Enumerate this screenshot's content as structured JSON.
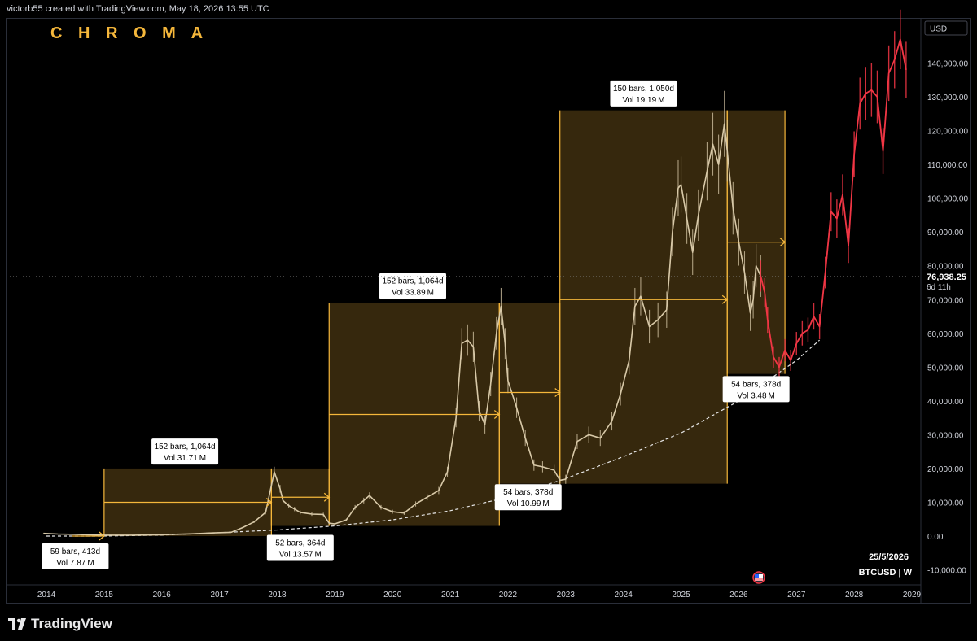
{
  "header": {
    "attribution": "victorb55 created with TradingView.com, May 18, 2026 13:55 UTC"
  },
  "brand": {
    "watermark": "C H R O M A",
    "footer": "TradingView"
  },
  "price_axis": {
    "currency": "USD",
    "current_price": "76,938.25",
    "countdown": "6d 11h",
    "date_label": "25/5/2026",
    "symbol_label": "BTCUSD | W"
  },
  "colors": {
    "background": "#000000",
    "accent": "#f5b73b",
    "candles": "#d8c9a8",
    "projection": "#f23645",
    "label_bg": "#ffffff",
    "label_text": "#000000"
  },
  "chart_data": {
    "type": "line",
    "symbol": "BTCUSD",
    "interval": "W",
    "ylim": [
      -10000,
      150000
    ],
    "y_ticks": [
      -10000,
      0,
      10000,
      20000,
      30000,
      40000,
      50000,
      60000,
      70000,
      80000,
      90000,
      100000,
      110000,
      120000,
      130000,
      140000
    ],
    "y_tick_labels": [
      "-10,000.00",
      "0.00",
      "10,000.00",
      "20,000.00",
      "30,000.00",
      "40,000.00",
      "50,000.00",
      "60,000.00",
      "70,000.00",
      "80,000.00",
      "90,000.00",
      "100,000.00",
      "110,000.00",
      "120,000.00",
      "130,000.00",
      "140,000.00"
    ],
    "x_ticks": [
      2014,
      2015,
      2016,
      2017,
      2018,
      2019,
      2020,
      2021,
      2022,
      2023,
      2024,
      2025,
      2026,
      2027,
      2028,
      2029
    ],
    "x_tick_labels": [
      "2014",
      "2015",
      "2016",
      "2017",
      "2018",
      "2019",
      "2020",
      "2021",
      "2022",
      "2023",
      "2024",
      "2025",
      "2026",
      "2027",
      "2028",
      "2029"
    ],
    "series": [
      {
        "role": "price",
        "x": [
          2013.95,
          2014.2,
          2014.5,
          2014.8,
          2015.0,
          2015.5,
          2016.0,
          2016.5,
          2016.9,
          2017.2,
          2017.4,
          2017.6,
          2017.8,
          2017.95,
          2018.05,
          2018.1,
          2018.2,
          2018.3,
          2018.4,
          2018.6,
          2018.8,
          2018.9,
          2019.0,
          2019.2,
          2019.35,
          2019.5,
          2019.6,
          2019.8,
          2020.0,
          2020.2,
          2020.4,
          2020.6,
          2020.8,
          2020.95,
          2021.1,
          2021.2,
          2021.3,
          2021.4,
          2021.5,
          2021.6,
          2021.7,
          2021.8,
          2021.88,
          2021.95,
          2022.0,
          2022.15,
          2022.3,
          2022.45,
          2022.6,
          2022.8,
          2022.9,
          2023.0,
          2023.2,
          2023.4,
          2023.6,
          2023.8,
          2023.95,
          2024.1,
          2024.2,
          2024.3,
          2024.45,
          2024.6,
          2024.75,
          2024.85,
          2024.95,
          2025.0,
          2025.1,
          2025.2,
          2025.3,
          2025.45,
          2025.55,
          2025.65,
          2025.75,
          2025.8,
          2025.9,
          2026.0,
          2026.1,
          2026.2,
          2026.25,
          2026.3,
          2026.38
        ],
        "y": [
          800,
          600,
          500,
          350,
          250,
          250,
          400,
          650,
          950,
          1100,
          2500,
          4200,
          7000,
          19000,
          14000,
          10500,
          9000,
          8000,
          7000,
          6500,
          6400,
          3800,
          3600,
          4800,
          8500,
          10500,
          12000,
          8500,
          7200,
          6800,
          9500,
          11500,
          13500,
          19000,
          35000,
          57000,
          58000,
          56000,
          37000,
          33000,
          45000,
          60000,
          68000,
          57000,
          46000,
          38000,
          29000,
          21000,
          20500,
          19500,
          16500,
          16800,
          28000,
          30000,
          29000,
          34000,
          42000,
          52000,
          68000,
          71000,
          62000,
          64000,
          67000,
          90000,
          103000,
          104000,
          94000,
          84000,
          95000,
          108000,
          116000,
          110000,
          122000,
          114000,
          97000,
          87000,
          78000,
          66000,
          70000,
          80000,
          76938
        ]
      },
      {
        "role": "projection",
        "x": [
          2026.38,
          2026.45,
          2026.5,
          2026.6,
          2026.7,
          2026.8,
          2026.9,
          2027.0,
          2027.1,
          2027.2,
          2027.3,
          2027.4,
          2027.5,
          2027.6,
          2027.7,
          2027.8,
          2027.9,
          2028.0,
          2028.1,
          2028.2,
          2028.3,
          2028.4,
          2028.5,
          2028.6,
          2028.7,
          2028.8,
          2028.9
        ],
        "y": [
          76938,
          72000,
          64000,
          53000,
          50000,
          55000,
          52000,
          57000,
          60000,
          61000,
          65000,
          62000,
          78000,
          96000,
          94000,
          101000,
          86000,
          113000,
          128000,
          131000,
          132000,
          130000,
          114000,
          137000,
          141000,
          147000,
          138000
        ]
      },
      {
        "role": "trendline",
        "x": [
          2014.0,
          2015.0,
          2016.0,
          2017.0,
          2018.0,
          2019.0,
          2020.0,
          2021.0,
          2022.0,
          2023.0,
          2024.0,
          2025.0,
          2026.0,
          2026.5,
          2027.0,
          2027.4
        ],
        "y": [
          0,
          0,
          300,
          1000,
          1800,
          3000,
          4800,
          7500,
          11500,
          17000,
          23500,
          30500,
          40000,
          46000,
          52000,
          58000
        ]
      }
    ],
    "boxes": [
      {
        "x0": 2015.0,
        "x1": 2017.9,
        "y0": 0,
        "y1": 20000,
        "mid_y": 10000
      },
      {
        "x0": 2018.9,
        "x1": 2021.85,
        "y0": 3000,
        "y1": 69000,
        "mid_y": 36000
      },
      {
        "x0": 2022.9,
        "x1": 2025.8,
        "y0": 15500,
        "y1": 126000,
        "mid_y": 70000
      },
      {
        "x0": 2025.8,
        "x1": 2026.8,
        "y0": 48000,
        "y1": 126000,
        "mid_y": 87000
      },
      {
        "x0": 2017.9,
        "x1": 2018.9,
        "y0": 3000,
        "y1": 20000,
        "mid_y": 11500
      },
      {
        "x0": 2021.85,
        "x1": 2022.9,
        "y0": 15500,
        "y1": 69000,
        "mid_y": 42500
      }
    ],
    "arrows": [
      {
        "x0": 2014.45,
        "x1": 2015.0,
        "y": 0
      },
      {
        "x0": 2015.0,
        "x1": 2017.9,
        "y": 10000
      },
      {
        "x0": 2017.9,
        "x1": 2018.9,
        "y": 11500
      },
      {
        "x0": 2018.9,
        "x1": 2021.85,
        "y": 36000
      },
      {
        "x0": 2021.85,
        "x1": 2022.9,
        "y": 42500
      },
      {
        "x0": 2022.9,
        "x1": 2025.8,
        "y": 70000
      },
      {
        "x0": 2025.8,
        "x1": 2026.8,
        "y": 87000
      }
    ],
    "annotations": [
      {
        "line1": "59 bars, 413d",
        "line2": "Vol 7.87 M",
        "x": 2014.5,
        "y": -6000
      },
      {
        "line1": "152 bars, 1,064d",
        "line2": "Vol 31.71 M",
        "x": 2016.4,
        "y": 25000
      },
      {
        "line1": "52 bars, 364d",
        "line2": "Vol 13.57 M",
        "x": 2018.4,
        "y": -3500
      },
      {
        "line1": "152 bars, 1,064d",
        "line2": "Vol 33.89 M",
        "x": 2020.35,
        "y": 74000
      },
      {
        "line1": "54 bars, 378d",
        "line2": "Vol 10.99 M",
        "x": 2022.35,
        "y": 11500
      },
      {
        "line1": "150 bars, 1,050d",
        "line2": "Vol 19.19 M",
        "x": 2024.35,
        "y": 131000
      },
      {
        "line1": "54 bars, 378d",
        "line2": "Vol 3.48 M",
        "x": 2026.3,
        "y": 43500
      }
    ]
  }
}
